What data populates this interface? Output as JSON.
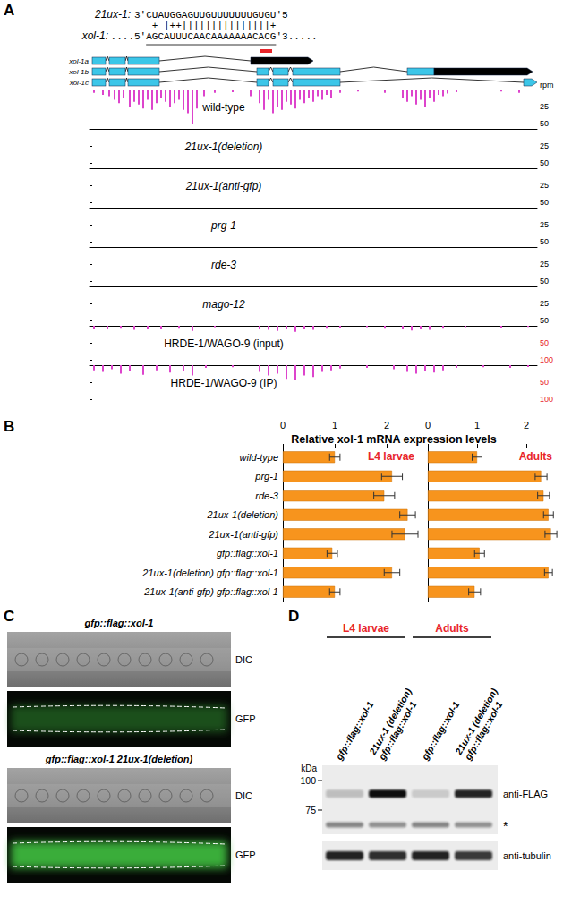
{
  "panel_labels": [
    "A",
    "B",
    "C",
    "D"
  ],
  "panel_a": {
    "sirna_label": "21ux-1:",
    "sirna": "3'CUAUGGAGUUGUUUUUUUGUGU'5",
    "pairing": " + |++|||||||||||||||+",
    "target_label": "xol-1:",
    "target": "....5'AGCAUUUCAACAAAAAAACACG'3.....",
    "isoforms": [
      "xol-1a",
      "xol-1b",
      "xol-1c"
    ],
    "unit": "rpm",
    "xlim": [
      0,
      500
    ],
    "tracks": [
      {
        "type": "bar",
        "name": "wild-type",
        "color": "#dd44cc",
        "ylim": [
          0,
          50
        ],
        "yticks": [
          25,
          50
        ],
        "x": [
          5,
          15,
          22,
          28,
          33,
          38,
          45,
          50,
          55,
          60,
          65,
          70,
          75,
          80,
          85,
          90,
          95,
          100,
          105,
          110,
          115,
          120,
          128,
          140,
          160,
          180,
          190,
          195,
          200,
          205,
          210,
          215,
          220,
          225,
          230,
          235,
          240,
          245,
          250,
          255,
          260,
          265,
          270,
          280,
          300,
          330,
          350,
          355,
          360,
          365,
          370,
          375,
          380,
          385,
          390,
          395,
          400,
          410,
          460,
          480
        ],
        "values": [
          5,
          8,
          10,
          15,
          20,
          12,
          25,
          18,
          22,
          28,
          15,
          30,
          20,
          12,
          18,
          25,
          20,
          15,
          30,
          35,
          50,
          28,
          10,
          5,
          4,
          10,
          20,
          30,
          15,
          35,
          25,
          30,
          18,
          22,
          28,
          15,
          20,
          12,
          18,
          10,
          15,
          8,
          12,
          5,
          3,
          5,
          12,
          18,
          10,
          22,
          15,
          25,
          12,
          18,
          8,
          10,
          6,
          4,
          3,
          5
        ]
      },
      {
        "type": "bar",
        "name": "21ux-1(deletion)",
        "color": "#dd44cc",
        "ylim": [
          0,
          50
        ],
        "yticks": [
          25,
          50
        ],
        "x": [],
        "values": []
      },
      {
        "type": "bar",
        "name": "21ux-1(anti-gfp)",
        "color": "#dd44cc",
        "ylim": [
          0,
          50
        ],
        "yticks": [
          25,
          50
        ],
        "x": [],
        "values": []
      },
      {
        "type": "bar",
        "name": "prg-1",
        "color": "#dd44cc",
        "ylim": [
          0,
          50
        ],
        "yticks": [
          25,
          50
        ],
        "x": [],
        "values": []
      },
      {
        "type": "bar",
        "name": "rde-3",
        "color": "#dd44cc",
        "ylim": [
          0,
          50
        ],
        "yticks": [
          25,
          50
        ],
        "x": [],
        "values": []
      },
      {
        "type": "bar",
        "name": "mago-12",
        "color": "#dd44cc",
        "ylim": [
          0,
          50
        ],
        "yticks": [
          25,
          50
        ],
        "x": [],
        "values": []
      },
      {
        "type": "bar",
        "name": "HRDE-1/WAGO-9 (input)",
        "color": "#dd44cc",
        "ylim": [
          0,
          100
        ],
        "yticks": [
          50,
          100
        ],
        "x": [
          5,
          20,
          35,
          50,
          65,
          80,
          100,
          115,
          140,
          190,
          200,
          210,
          220,
          230,
          240,
          250,
          265,
          280,
          310,
          330,
          350,
          360,
          370,
          380,
          395,
          420,
          460,
          490
        ],
        "values": [
          8,
          10,
          6,
          12,
          8,
          10,
          6,
          15,
          4,
          8,
          12,
          15,
          10,
          18,
          8,
          12,
          6,
          5,
          4,
          6,
          10,
          14,
          8,
          12,
          6,
          4,
          5,
          3
        ]
      },
      {
        "type": "bar",
        "name": "HRDE-1/WAGO-9 (IP)",
        "color": "#dd44cc",
        "ylim": [
          0,
          100
        ],
        "yticks": [
          50,
          100
        ],
        "x": [
          5,
          15,
          25,
          35,
          45,
          60,
          75,
          90,
          105,
          115,
          130,
          160,
          190,
          200,
          210,
          220,
          230,
          240,
          250,
          260,
          270,
          280,
          310,
          340,
          355,
          365,
          375,
          385,
          395,
          410,
          440,
          470,
          490
        ],
        "values": [
          15,
          20,
          12,
          25,
          18,
          28,
          15,
          22,
          18,
          30,
          8,
          6,
          20,
          30,
          25,
          40,
          45,
          30,
          35,
          20,
          15,
          10,
          8,
          12,
          20,
          25,
          18,
          22,
          15,
          8,
          6,
          8,
          5
        ]
      }
    ]
  },
  "chart_data": [
    {
      "type": "bar",
      "orientation": "horizontal",
      "title": "Relative xol-1 mRNA expression levels",
      "annotation": "L4 larvae",
      "color": "#f7941d",
      "grid": false,
      "categories": [
        "wild-type",
        "prg-1",
        "rde-3",
        "21ux-1(deletion)",
        "21ux-1(anti-gfp)",
        "gfp::flag::xol-1",
        "21ux-1(deletion) gfp::flag::xol-1",
        "21ux-1(anti-gfp) gfp::flag::xol-1"
      ],
      "values": [
        1.0,
        2.1,
        1.95,
        2.4,
        2.35,
        0.95,
        2.1,
        1.0
      ],
      "errors": [
        0.1,
        0.2,
        0.2,
        0.15,
        0.25,
        0.1,
        0.15,
        0.1
      ],
      "xlim": [
        0,
        2.6
      ],
      "xticks": [
        0,
        1,
        2
      ]
    },
    {
      "type": "bar",
      "orientation": "horizontal",
      "annotation": "Adults",
      "color": "#f7941d",
      "grid": false,
      "tick_labels": "x",
      "categories": [
        "wild-type",
        "prg-1",
        "rde-3",
        "21ux-1(deletion)",
        "21ux-1(anti-gfp)",
        "gfp::flag::xol-1",
        "21ux-1(deletion) gfp::flag::xol-1",
        "21ux-1(anti-gfp) gfp::flag::xol-1"
      ],
      "values": [
        1.0,
        2.3,
        2.35,
        2.45,
        2.5,
        1.05,
        2.45,
        0.95
      ],
      "errors": [
        0.1,
        0.12,
        0.12,
        0.1,
        0.12,
        0.1,
        0.08,
        0.12
      ],
      "xlim": [
        0,
        2.6
      ],
      "xticks": [
        0,
        1,
        2
      ]
    }
  ],
  "panel_c": {
    "images": [
      {
        "title": "gfp::flag::xol-1",
        "channels": [
          "DIC",
          "GFP"
        ]
      },
      {
        "title": "gfp::flag::xol-1 21ux-1(deletion)",
        "channels": [
          "DIC",
          "GFP"
        ]
      }
    ]
  },
  "panel_d": {
    "groups": [
      {
        "label": "L4 larvae",
        "lanes": [
          [
            "gfp::flag::xol-1"
          ],
          [
            "21ux-1 (deletion)",
            "gfp::flag::xol-1"
          ]
        ]
      },
      {
        "label": "Adults",
        "lanes": [
          [
            "gfp::flag::xol-1"
          ],
          [
            "21ux-1 (deletion)",
            "gfp::flag::xol-1"
          ]
        ]
      }
    ],
    "kda_label": "kDa",
    "markers": [
      100,
      75
    ],
    "flag": {
      "label": "anti-FLAG",
      "band_kda": 88,
      "intensity": [
        0.2,
        1,
        0.15,
        0.9
      ]
    },
    "nonspecific": {
      "label": "*",
      "band_kda": 65,
      "intensity": [
        0.45,
        0.4,
        0.45,
        0.4
      ]
    },
    "tubulin": {
      "label": "anti-tubulin",
      "intensity": [
        0.9,
        0.85,
        0.9,
        0.8
      ]
    }
  }
}
